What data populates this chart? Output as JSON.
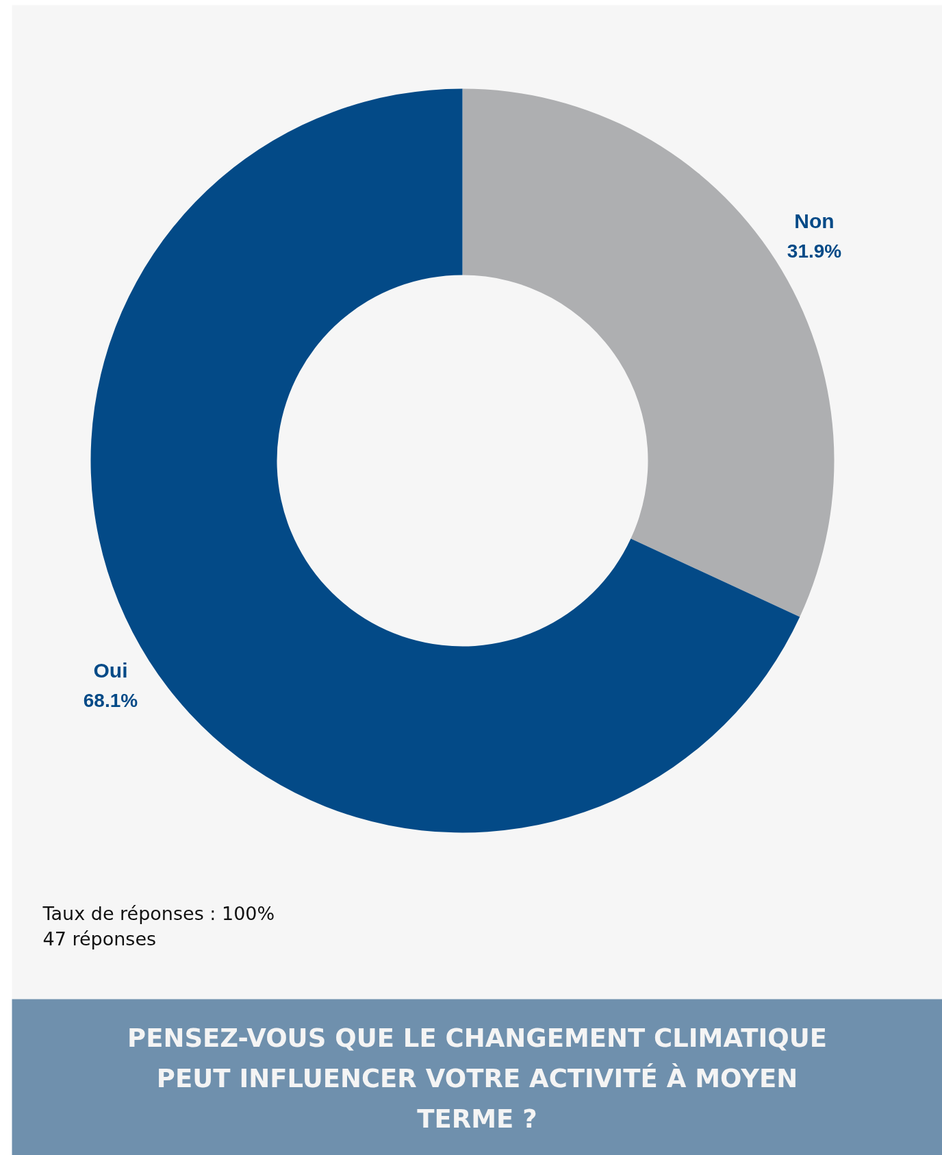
{
  "chart_data": {
    "type": "donut",
    "title": "PENSEZ-VOUS QUE LE CHANGEMENT CLIMATIQUE PEUT INFLUENCER VOTRE ACTIVITÉ À MOYEN TERME ?",
    "categories": [
      "Non",
      "Oui"
    ],
    "values": [
      31.9,
      68.1
    ],
    "colors": [
      "#aeafb1",
      "#034a87"
    ],
    "value_labels": [
      "31.9%",
      "68.1%"
    ],
    "annotations": [
      "Taux de réponses : 100%",
      "47 réponses"
    ]
  }
}
